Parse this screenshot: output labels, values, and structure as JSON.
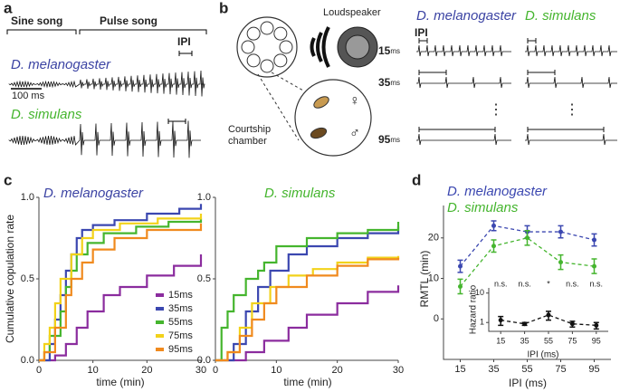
{
  "panel_labels": [
    "a",
    "b",
    "c",
    "d"
  ],
  "panel_a": {
    "sine_label": "Sine song",
    "pulse_label": "Pulse song",
    "ipi_label": "IPI",
    "species_1": "D. melanogaster",
    "species_2": "D. simulans",
    "scale_label": "100 ms"
  },
  "panel_b": {
    "speaker_label": "Loudspeaker",
    "chamber_label_1": "Courtship",
    "chamber_label_2": "chamber",
    "female": "♀",
    "male": "♂",
    "species_1": "D. melanogaster",
    "species_2": "D. simulans",
    "ipi_label": "IPI",
    "rows": [
      {
        "ipi": "15",
        "unit": "ms"
      },
      {
        "ipi": "35",
        "unit": "ms"
      },
      {
        "ipi": "95",
        "unit": "ms"
      }
    ],
    "ellipsis": "⋮"
  },
  "chart_data": [
    {
      "type": "step",
      "title": "D. melanogaster",
      "title_color": "#3b43a3",
      "x_label": "time (min)",
      "y_label": "Cumulative copulation rate",
      "xlim": [
        0,
        30
      ],
      "ylim": [
        0,
        1
      ],
      "xticks": [
        0,
        10,
        20,
        30
      ],
      "yticks": [
        {
          "value": 0,
          "label": "0.0"
        },
        {
          "value": 0.5,
          "label": "0.5"
        },
        {
          "value": 1,
          "label": "1.0"
        }
      ],
      "legend": "lower right",
      "series": [
        {
          "name": "15ms",
          "color": "#8b2c9e",
          "x": [
            0,
            3,
            5,
            7,
            9,
            12,
            15,
            20,
            25,
            30
          ],
          "values": [
            0,
            0.03,
            0.1,
            0.2,
            0.3,
            0.4,
            0.45,
            0.52,
            0.58,
            0.65
          ]
        },
        {
          "name": "35ms",
          "color": "#3b47b0",
          "x": [
            0,
            2,
            3,
            4,
            5,
            6,
            7,
            8,
            10,
            14,
            20,
            26,
            30
          ],
          "values": [
            0,
            0.1,
            0.25,
            0.4,
            0.55,
            0.65,
            0.75,
            0.8,
            0.83,
            0.86,
            0.9,
            0.93,
            0.96
          ]
        },
        {
          "name": "55ms",
          "color": "#45b52e",
          "x": [
            0,
            1,
            2,
            4,
            5,
            6,
            7,
            9,
            12,
            18,
            24,
            30
          ],
          "values": [
            0,
            0.05,
            0.15,
            0.3,
            0.45,
            0.55,
            0.65,
            0.72,
            0.78,
            0.82,
            0.85,
            0.87
          ]
        },
        {
          "name": "75ms",
          "color": "#f2d21a",
          "x": [
            0,
            1,
            2,
            3,
            4,
            6,
            8,
            10,
            15,
            22,
            30
          ],
          "values": [
            0,
            0.1,
            0.2,
            0.35,
            0.5,
            0.65,
            0.75,
            0.8,
            0.84,
            0.87,
            0.9
          ]
        },
        {
          "name": "95ms",
          "color": "#f08a1e",
          "x": [
            0,
            1,
            3,
            5,
            6,
            8,
            10,
            14,
            20,
            30
          ],
          "values": [
            0,
            0.05,
            0.2,
            0.4,
            0.5,
            0.6,
            0.68,
            0.75,
            0.8,
            0.84
          ]
        }
      ]
    },
    {
      "type": "step",
      "title": "D. simulans",
      "title_color": "#45b52e",
      "x_label": "time (min)",
      "xlim": [
        0,
        30
      ],
      "ylim": [
        0,
        1
      ],
      "xticks": [
        0,
        10,
        20,
        30
      ],
      "yticks": [
        {
          "value": 0,
          "label": "0.0"
        },
        {
          "value": 0.5,
          "label": "0.5"
        },
        {
          "value": 1,
          "label": "1.0"
        }
      ],
      "series": [
        {
          "color": "#8b2c9e",
          "x": [
            0,
            5,
            8,
            12,
            15,
            20,
            25,
            30
          ],
          "values": [
            0,
            0.05,
            0.12,
            0.2,
            0.28,
            0.35,
            0.42,
            0.46
          ]
        },
        {
          "color": "#3b47b0",
          "x": [
            0,
            3,
            5,
            7,
            9,
            12,
            15,
            20,
            25,
            30
          ],
          "values": [
            0,
            0.1,
            0.3,
            0.45,
            0.55,
            0.65,
            0.7,
            0.75,
            0.78,
            0.82
          ]
        },
        {
          "color": "#45b52e",
          "x": [
            0,
            1,
            2,
            3,
            5,
            7,
            8,
            10,
            15,
            20,
            25,
            30
          ],
          "values": [
            0,
            0.2,
            0.3,
            0.4,
            0.5,
            0.55,
            0.6,
            0.7,
            0.75,
            0.78,
            0.8,
            0.85
          ]
        },
        {
          "color": "#f2d21a",
          "x": [
            0,
            2,
            4,
            6,
            9,
            12,
            16,
            20,
            25,
            30
          ],
          "values": [
            0,
            0.05,
            0.2,
            0.35,
            0.45,
            0.52,
            0.56,
            0.6,
            0.63,
            0.64
          ]
        },
        {
          "color": "#f08a1e",
          "x": [
            0,
            2,
            4,
            6,
            8,
            10,
            15,
            20,
            25,
            30
          ],
          "values": [
            0,
            0.05,
            0.15,
            0.25,
            0.35,
            0.45,
            0.52,
            0.58,
            0.62,
            0.63
          ]
        }
      ]
    },
    {
      "type": "line",
      "x_label": "IPI (ms)",
      "y_label": "RMTL (min)",
      "categories": [
        "15",
        "35",
        "55",
        "75",
        "95"
      ],
      "ylim": [
        -10,
        28
      ],
      "yticks": [
        0,
        10,
        20
      ],
      "dashed": true,
      "legend": "upper left",
      "series": [
        {
          "name": "D. melanogaster",
          "color": "#3b47b0",
          "values": [
            13,
            23,
            21.5,
            21.5,
            19.5
          ],
          "errors": [
            1.5,
            1.2,
            1.5,
            1.5,
            1.5
          ]
        },
        {
          "name": "D. simulans",
          "color": "#45b52e",
          "values": [
            8,
            18,
            20,
            14,
            13
          ],
          "errors": [
            1.8,
            1.5,
            1.8,
            1.8,
            1.8
          ]
        }
      ]
    },
    {
      "type": "line",
      "x_label": "IPI (ms)",
      "y_label": "Hazard ratio",
      "categories": [
        "15",
        "35",
        "55",
        "75",
        "95"
      ],
      "ylim": [
        0.5,
        15
      ],
      "log_y": true,
      "yticks": [
        1,
        10
      ],
      "dashed": true,
      "annotations": [
        "n.s.",
        "n.s.",
        "*",
        "n.s.",
        "n.s."
      ],
      "series": [
        {
          "color": "#111111",
          "values": [
            1.2,
            0.9,
            1.8,
            0.9,
            0.8
          ],
          "errors": [
            0.4,
            0.1,
            0.6,
            0.2,
            0.2
          ]
        }
      ]
    }
  ]
}
